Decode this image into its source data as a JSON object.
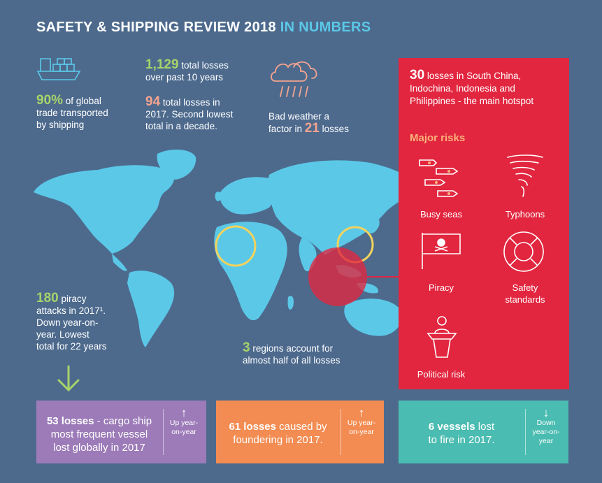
{
  "title": {
    "main": "SAFETY & SHIPPING REVIEW 2018 ",
    "highlight": "IN NUMBERS"
  },
  "stats": {
    "trade": {
      "value": "90%",
      "text1": " of global",
      "text2": "trade transported",
      "text3": "by shipping"
    },
    "losses_decade": {
      "value": "1,129",
      "text1": " total losses",
      "text2": "over past 10 years"
    },
    "losses_2017": {
      "value": "94",
      "text1": " total losses in",
      "text2": "2017. Second lowest",
      "text3": "total in a decade."
    },
    "weather": {
      "text1": "Bad weather a",
      "text2": "factor in ",
      "value": "21",
      "text3": " losses"
    },
    "piracy": {
      "value": "180",
      "text1": " piracy",
      "text2": "attacks in 2017¹.",
      "text3": "Down year-on-",
      "text4": "year. Lowest",
      "text5": "total for 22 years"
    },
    "regions": {
      "value": "3",
      "text1": " regions account for",
      "text2": "almost half of all losses"
    }
  },
  "hotspot": {
    "value": "30",
    "text1": " losses in South China,",
    "text2": "Indochina, Indonesia and",
    "text3": "Philippines  -  the main hotspot"
  },
  "major_risks": {
    "heading": "Major risks",
    "items": [
      {
        "label": "Busy seas",
        "icon": "ships-icon"
      },
      {
        "label": "Typhoons",
        "icon": "tornado-icon"
      },
      {
        "label": "Piracy",
        "icon": "pirate-flag-icon"
      },
      {
        "label": "Safety",
        "label2": "standards",
        "icon": "lifebuoy-icon"
      },
      {
        "label": "Political risk",
        "icon": "podium-icon"
      }
    ]
  },
  "boxes": [
    {
      "bold": "53 losses",
      "line1": " - cargo ship",
      "line2": "most frequent vessel",
      "line3": "lost globally in 2017",
      "trend1": "Up year-",
      "trend2": "on-year",
      "arrow": "↑",
      "color": "#9c7bb8"
    },
    {
      "bold": "61 losses",
      "line1": " caused by",
      "line2": "foundering in 2017.",
      "trend1": "Up year-",
      "trend2": "on-year",
      "arrow": "↑",
      "color": "#f28c52"
    },
    {
      "bold": "6 vessels",
      "line1": " lost",
      "line2": "to fire in 2017.",
      "trend1": "Down",
      "trend2": "year-on-",
      "trend3": "year",
      "arrow": "↓",
      "color": "#4bbcb1"
    }
  ],
  "colors": {
    "background": "#4d6a8d",
    "map": "#5bc8e8",
    "red_panel": "#e2263f",
    "green_arrow": "#a7d36a",
    "circle": "#f2d35c"
  }
}
